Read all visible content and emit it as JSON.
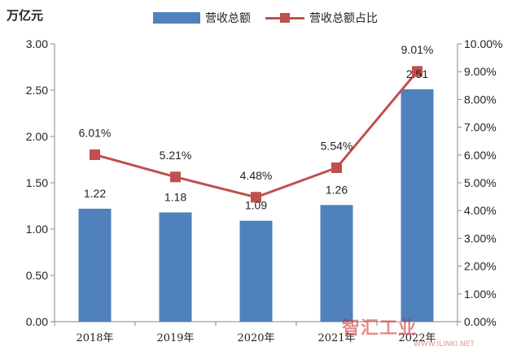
{
  "unit_label": "万亿元",
  "legend": {
    "bar_label": "营收总额",
    "line_label": "营收总额占比"
  },
  "colors": {
    "bar": "#4f81bd",
    "line": "#c0504d",
    "axis": "#888888"
  },
  "watermark": {
    "text": "智汇工业",
    "sub": "WWW.ILINKI.NET"
  },
  "chart_data": {
    "type": "bar",
    "categories": [
      "2018年",
      "2019年",
      "2020年",
      "2021年",
      "2022年"
    ],
    "series": [
      {
        "name": "营收总额",
        "type": "bar",
        "axis": "left",
        "values": [
          1.22,
          1.18,
          1.09,
          1.26,
          2.51
        ],
        "labels": [
          "1.22",
          "1.18",
          "1.09",
          "1.26",
          "2.51"
        ]
      },
      {
        "name": "营收总额占比",
        "type": "line",
        "axis": "right",
        "values": [
          6.01,
          5.21,
          4.48,
          5.54,
          9.01
        ],
        "labels": [
          "6.01%",
          "5.21%",
          "4.48%",
          "5.54%",
          "9.01%"
        ]
      }
    ],
    "ylim": [
      0,
      3.0
    ],
    "y_ticks": [
      "0.00",
      "0.50",
      "1.00",
      "1.50",
      "2.00",
      "2.50",
      "3.00"
    ],
    "y2lim": [
      0,
      10
    ],
    "y2_ticks": [
      "0.00%",
      "1.00%",
      "2.00%",
      "3.00%",
      "4.00%",
      "5.00%",
      "6.00%",
      "7.00%",
      "8.00%",
      "9.00%",
      "10.00%"
    ],
    "grid": false,
    "legend_position": "top"
  }
}
